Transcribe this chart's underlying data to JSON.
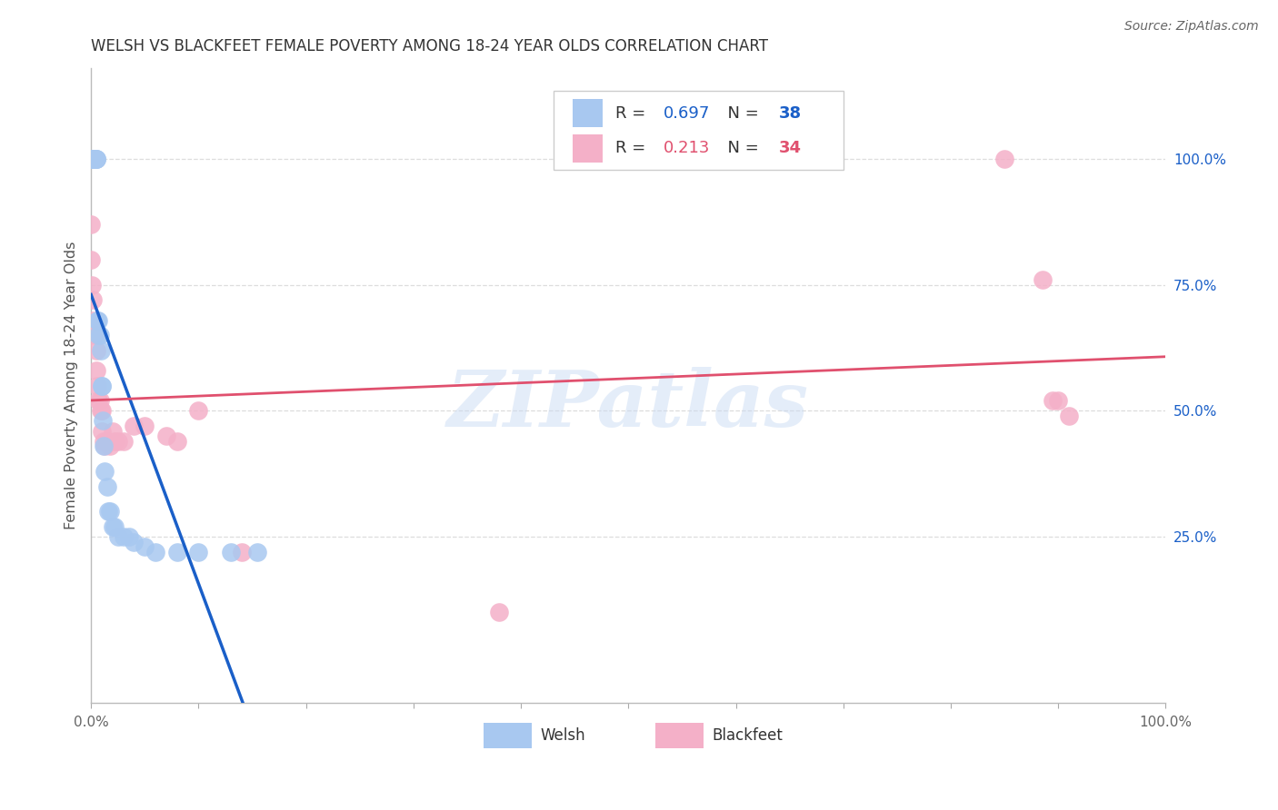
{
  "title": "WELSH VS BLACKFEET FEMALE POVERTY AMONG 18-24 YEAR OLDS CORRELATION CHART",
  "source": "Source: ZipAtlas.com",
  "ylabel": "Female Poverty Among 18-24 Year Olds",
  "xlim": [
    0,
    1.0
  ],
  "ylim": [
    -0.08,
    1.18
  ],
  "welsh_color": "#a8c8f0",
  "blackfeet_color": "#f4b0c8",
  "welsh_line_color": "#1a5fc8",
  "blackfeet_line_color": "#e0506e",
  "welsh_R": 0.697,
  "welsh_N": 38,
  "blackfeet_R": 0.213,
  "blackfeet_N": 34,
  "watermark": "ZIPatlas",
  "xtick_labels": [
    "0.0%",
    "",
    "",
    "",
    "",
    "",
    "",
    "",
    "",
    "",
    "100.0%"
  ],
  "xtick_vals": [
    0.0,
    0.1,
    0.2,
    0.3,
    0.4,
    0.5,
    0.6,
    0.7,
    0.8,
    0.9,
    1.0
  ],
  "ytick_labels": [
    "25.0%",
    "50.0%",
    "75.0%",
    "100.0%"
  ],
  "ytick_vals": [
    0.25,
    0.5,
    0.75,
    1.0
  ],
  "title_color": "#333333",
  "grid_color": "#dddddd",
  "welsh_x": [
    0.0,
    0.0,
    0.001,
    0.001,
    0.001,
    0.002,
    0.002,
    0.003,
    0.003,
    0.004,
    0.005,
    0.005,
    0.005,
    0.006,
    0.007,
    0.007,
    0.008,
    0.009,
    0.01,
    0.01,
    0.011,
    0.012,
    0.013,
    0.015,
    0.016,
    0.018,
    0.02,
    0.022,
    0.025,
    0.03,
    0.035,
    0.04,
    0.05,
    0.06,
    0.08,
    0.1,
    0.13,
    0.155
  ],
  "welsh_y": [
    1.0,
    1.0,
    1.0,
    1.0,
    1.0,
    1.0,
    1.0,
    1.0,
    1.0,
    1.0,
    1.0,
    1.0,
    1.0,
    0.68,
    0.68,
    0.65,
    0.65,
    0.62,
    0.55,
    0.55,
    0.48,
    0.43,
    0.38,
    0.35,
    0.3,
    0.3,
    0.27,
    0.27,
    0.25,
    0.25,
    0.25,
    0.24,
    0.23,
    0.22,
    0.22,
    0.22,
    0.22,
    0.22
  ],
  "blackfeet_x": [
    0.0,
    0.0,
    0.001,
    0.002,
    0.002,
    0.003,
    0.005,
    0.005,
    0.006,
    0.007,
    0.008,
    0.009,
    0.01,
    0.01,
    0.012,
    0.013,
    0.015,
    0.018,
    0.02,
    0.022,
    0.025,
    0.03,
    0.04,
    0.05,
    0.07,
    0.08,
    0.1,
    0.14,
    0.38,
    0.85,
    0.885,
    0.895,
    0.9,
    0.91
  ],
  "blackfeet_y": [
    0.87,
    0.8,
    0.75,
    0.72,
    0.68,
    0.65,
    0.62,
    0.58,
    0.55,
    0.52,
    0.52,
    0.5,
    0.5,
    0.46,
    0.44,
    0.43,
    0.44,
    0.43,
    0.46,
    0.44,
    0.44,
    0.44,
    0.47,
    0.47,
    0.45,
    0.44,
    0.5,
    0.22,
    0.1,
    1.0,
    0.76,
    0.52,
    0.52,
    0.49
  ]
}
